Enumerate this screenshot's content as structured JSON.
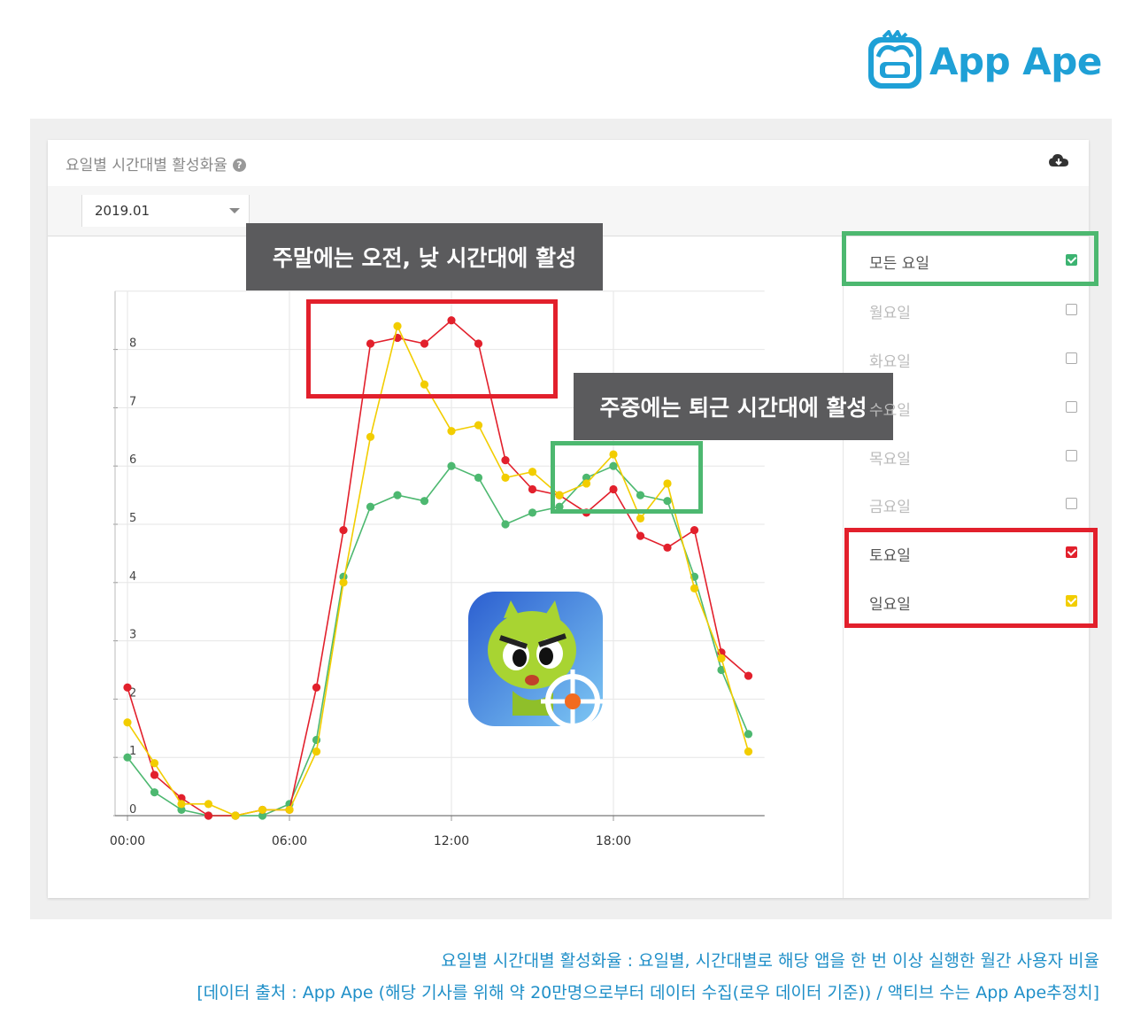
{
  "brand": {
    "name": "App Ape",
    "color": "#1fa0d6"
  },
  "card": {
    "title": "요일별 시간대별 활성화율",
    "help_icon": "question-circle-icon",
    "download_icon": "cloud-download-icon",
    "period_select": "2019.01"
  },
  "legend": {
    "items": [
      {
        "label": "모든 요일",
        "checked": true,
        "color": "#3cb371"
      },
      {
        "label": "월요일",
        "checked": false
      },
      {
        "label": "화요일",
        "checked": false
      },
      {
        "label": "수요일",
        "checked": false
      },
      {
        "label": "목요일",
        "checked": false
      },
      {
        "label": "금요일",
        "checked": false
      },
      {
        "label": "토요일",
        "checked": true,
        "color": "#e2202c"
      },
      {
        "label": "일요일",
        "checked": true,
        "color": "#f2cd00"
      }
    ]
  },
  "annotations": {
    "weekend": "주말에는 오전, 낮 시간대에 활성",
    "weekday": "주중에는 퇴근 시간대에 활성",
    "highlight_red": "#e2202c",
    "highlight_green": "#4db870"
  },
  "chart_data": {
    "type": "line",
    "x": [
      0,
      1,
      2,
      3,
      4,
      5,
      6,
      7,
      8,
      9,
      10,
      11,
      12,
      13,
      14,
      15,
      16,
      17,
      18,
      19,
      20,
      21,
      22,
      23
    ],
    "x_tick_labels": [
      "00:00",
      "06:00",
      "12:00",
      "18:00"
    ],
    "x_tick_values": [
      0,
      6,
      12,
      18
    ],
    "y_tick_values": [
      0,
      1,
      2,
      3,
      4,
      5,
      6,
      7,
      8
    ],
    "ylim": [
      0,
      9
    ],
    "xlim": [
      0,
      23.5
    ],
    "grid": true,
    "series": [
      {
        "name": "모든 요일",
        "color": "#4db870",
        "values": [
          1.0,
          0.4,
          0.1,
          0.0,
          0.0,
          0.0,
          0.2,
          1.3,
          4.1,
          5.3,
          5.5,
          5.4,
          6.0,
          5.8,
          5.0,
          5.2,
          5.3,
          5.8,
          6.0,
          5.5,
          5.4,
          4.1,
          2.5,
          1.4
        ]
      },
      {
        "name": "토요일",
        "color": "#e2202c",
        "values": [
          2.2,
          0.7,
          0.3,
          0.0,
          0.0,
          0.1,
          0.1,
          2.2,
          4.9,
          8.1,
          8.2,
          8.1,
          8.5,
          8.1,
          6.1,
          5.6,
          5.5,
          5.2,
          5.6,
          4.8,
          4.6,
          4.9,
          2.8,
          2.4
        ]
      },
      {
        "name": "일요일",
        "color": "#f2cd00",
        "values": [
          1.6,
          0.9,
          0.2,
          0.2,
          0.0,
          0.1,
          0.1,
          1.1,
          4.0,
          6.5,
          8.4,
          7.4,
          6.6,
          6.7,
          5.8,
          5.9,
          5.5,
          5.7,
          6.2,
          5.1,
          5.7,
          3.9,
          2.7,
          1.1
        ]
      }
    ]
  },
  "footer": {
    "line1": "요일별 시간대별 활성화율 : 요일별, 시간대별로 해당 앱을 한 번 이상 실행한 월간 사용자 비율",
    "line2": "[데이터 출처 : App Ape (해당 기사를 위해 약 20만명으로부터 데이터 수집(로우 데이터 기준)) / 액티브 수는 App Ape추정치]"
  }
}
